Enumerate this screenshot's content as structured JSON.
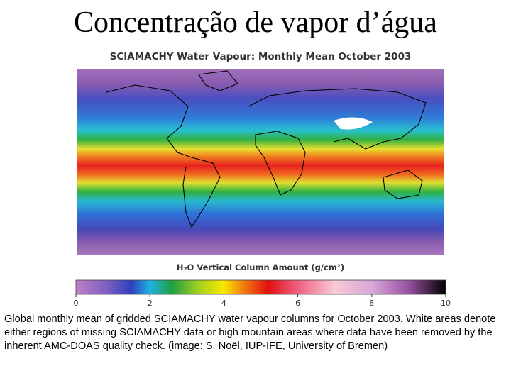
{
  "slide": {
    "title": "Concentração de vapor d’água"
  },
  "figure": {
    "title": "SCIAMACHY Water Vapour: Monthly Mean October 2003",
    "colorbar_label": "H₂O Vertical Column Amount (g/cm²)",
    "colorbar_ticks": [
      0,
      2,
      4,
      6,
      8,
      10
    ]
  },
  "caption": "Global monthly mean of gridded SCIAMACHY water vapour columns for October 2003. White areas denote either regions of missing SCIAMACHY data or high mountain areas where data have been removed by the inherent AMC-DOAS quality check. (image: S. Noël, IUP-IFE, University of Bremen)"
}
